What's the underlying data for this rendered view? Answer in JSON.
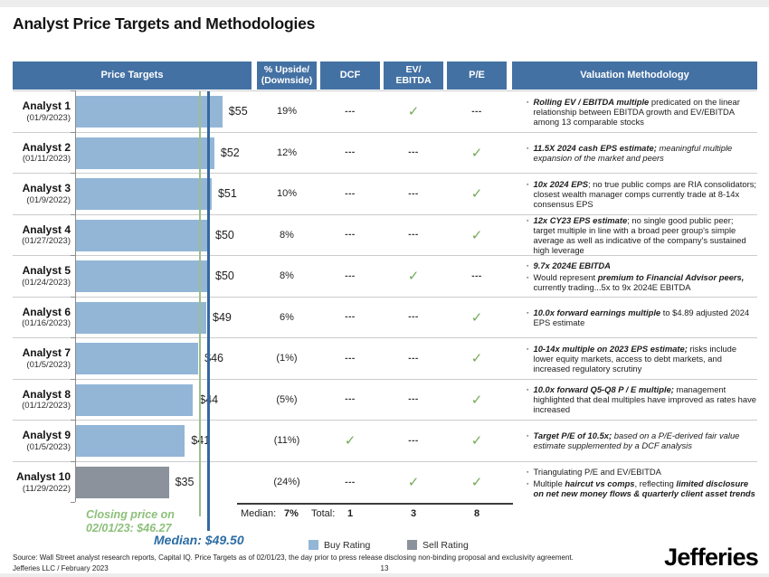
{
  "title": "Analyst Price Targets and Methodologies",
  "colors": {
    "header_bg": "#4471a3",
    "header_text": "#ffffff",
    "buy_bar": "#93b6d7",
    "sell_bar": "#8b929b",
    "check_green": "#74aa58",
    "closing_line": "#9cbf8b",
    "median_line": "#36689f",
    "closing_text": "#8cc07a",
    "median_text": "#2c6da4",
    "separator": "#cccccc",
    "axis": "#8c8c8c"
  },
  "header": {
    "price_targets": "Price Targets",
    "upside": "% Upside/\n(Downside)",
    "dcf": "DCF",
    "ev_ebitda": "EV/\nEBITDA",
    "pe": "P/E",
    "methodology": "Valuation Methodology"
  },
  "analysts": [
    {
      "name": "Analyst 1",
      "date": "(01/9/2023)",
      "target": 55,
      "price_label": "$55",
      "upside": "19%",
      "rating": "buy",
      "dcf": false,
      "ev": true,
      "pe": false,
      "bullets": [
        [
          {
            "t": "Rolling EV / EBITDA multiple",
            "s": "bi"
          },
          {
            "t": " predicated on the linear relationship between EBITDA growth and EV/EBITDA among 13 comparable stocks",
            "s": "n"
          }
        ]
      ]
    },
    {
      "name": "Analyst 2",
      "date": "(01/11/2023)",
      "target": 52,
      "price_label": "$52",
      "upside": "12%",
      "rating": "buy",
      "dcf": false,
      "ev": false,
      "pe": true,
      "bullets": [
        [
          {
            "t": "11.5X 2024 cash EPS estimate;",
            "s": "bi"
          },
          {
            "t": " meaningful multiple expansion of the market and peers",
            "s": "i"
          }
        ]
      ]
    },
    {
      "name": "Analyst 3",
      "date": "(01/9/2022)",
      "target": 51,
      "price_label": "$51",
      "upside": "10%",
      "rating": "buy",
      "dcf": false,
      "ev": false,
      "pe": true,
      "bullets": [
        [
          {
            "t": "10x 2024 EPS",
            "s": "bi"
          },
          {
            "t": "; no true public comps are RIA consolidators; closest wealth manager comps currently trade at 8-14x consensus EPS",
            "s": "n"
          }
        ]
      ]
    },
    {
      "name": "Analyst 4",
      "date": "(01/27/2023)",
      "target": 50,
      "price_label": "$50",
      "upside": "8%",
      "rating": "buy",
      "dcf": false,
      "ev": false,
      "pe": true,
      "bullets": [
        [
          {
            "t": "12x CY23 EPS estimate",
            "s": "bi"
          },
          {
            "t": "; no single good public peer; target multiple in line with a broad peer group's simple average as well as indicative of the company's sustained high leverage",
            "s": "n"
          }
        ]
      ]
    },
    {
      "name": "Analyst 5",
      "date": "(01/24/2023)",
      "target": 50,
      "price_label": "$50",
      "upside": "8%",
      "rating": "buy",
      "dcf": false,
      "ev": true,
      "pe": false,
      "bullets": [
        [
          {
            "t": "9.7x 2024E EBITDA",
            "s": "bi"
          }
        ],
        [
          {
            "t": "Would represent ",
            "s": "n"
          },
          {
            "t": "premium to Financial Advisor peers,",
            "s": "bi"
          },
          {
            "t": " currently trading...5x to 9x 2024E EBITDA",
            "s": "n"
          }
        ]
      ]
    },
    {
      "name": "Analyst 6",
      "date": "(01/16/2023)",
      "target": 49,
      "price_label": "$49",
      "upside": "6%",
      "rating": "buy",
      "dcf": false,
      "ev": false,
      "pe": true,
      "bullets": [
        [
          {
            "t": "10.0x forward earnings multiple",
            "s": "bi"
          },
          {
            "t": " to $4.89 adjusted 2024 EPS estimate",
            "s": "n"
          }
        ]
      ]
    },
    {
      "name": "Analyst 7",
      "date": "(01/5/2023)",
      "target": 46,
      "price_label": "$46",
      "upside": "(1%)",
      "rating": "buy",
      "dcf": false,
      "ev": false,
      "pe": true,
      "bullets": [
        [
          {
            "t": "10-14x multiple on 2023 EPS estimate;",
            "s": "bi"
          },
          {
            "t": " risks include lower equity markets, access to debt markets, and increased regulatory scrutiny",
            "s": "n"
          }
        ]
      ]
    },
    {
      "name": "Analyst 8",
      "date": "(01/12/2023)",
      "target": 44,
      "price_label": "$44",
      "upside": "(5%)",
      "rating": "buy",
      "dcf": false,
      "ev": false,
      "pe": true,
      "bullets": [
        [
          {
            "t": "10.0x forward Q5-Q8 P / E multiple;",
            "s": "bi"
          },
          {
            "t": " management highlighted that deal multiples have improved as rates have increased",
            "s": "n"
          }
        ]
      ]
    },
    {
      "name": "Analyst 9",
      "date": "(01/5/2023)",
      "target": 41,
      "price_label": "$41",
      "upside": "(11%)",
      "rating": "buy",
      "dcf": true,
      "ev": false,
      "pe": true,
      "bullets": [
        [
          {
            "t": "Target P/E of 10.5x;",
            "s": "bi"
          },
          {
            "t": " based on a P/E-derived fair value estimate supplemented by a DCF analysis",
            "s": "i"
          }
        ]
      ]
    },
    {
      "name": "Analyst 10",
      "date": "(11/29/2022)",
      "target": 35,
      "price_label": "$35",
      "upside": "(24%)",
      "rating": "sell",
      "dcf": false,
      "ev": true,
      "pe": true,
      "bullets": [
        [
          {
            "t": "Triangulating P/E and EV/EBITDA",
            "s": "n"
          }
        ],
        [
          {
            "t": "Multiple ",
            "s": "n"
          },
          {
            "t": "haircut vs comps",
            "s": "bi"
          },
          {
            "t": ", reflecting ",
            "s": "n"
          },
          {
            "t": "limited disclosure on net new money flows & quarterly client asset trends",
            "s": "bi"
          }
        ]
      ]
    }
  ],
  "summary": {
    "median_label": "Median:",
    "median_value": "7%",
    "total_label": "Total:",
    "dcf_total": "1",
    "ev_total": "3",
    "pe_total": "8"
  },
  "reference_lines": {
    "closing": {
      "value": 46.27,
      "label": "Closing price on\n02/01/23: $46.27"
    },
    "median": {
      "value": 49.5,
      "label": "Median: $49.50"
    }
  },
  "legend": {
    "buy_label": "Buy Rating",
    "sell_label": "Sell Rating"
  },
  "footer": {
    "source": "Source: Wall Street analyst research reports, Capital IQ. Price Targets as of 02/01/23, the day prior to press release disclosing non-binding proposal and exclusivity agreement.",
    "entity": "Jefferies LLC  /  February 2023",
    "page": "13",
    "logo": "Jefferies"
  },
  "chart_data": {
    "type": "bar",
    "orientation": "horizontal",
    "title": "Analyst Price Targets and Methodologies",
    "categories": [
      "Analyst 1 (01/9/2023)",
      "Analyst 2 (01/11/2023)",
      "Analyst 3 (01/9/2022)",
      "Analyst 4 (01/27/2023)",
      "Analyst 5 (01/24/2023)",
      "Analyst 6 (01/16/2023)",
      "Analyst 7 (01/5/2023)",
      "Analyst 8 (01/12/2023)",
      "Analyst 9 (01/5/2023)",
      "Analyst 10 (11/29/2022)"
    ],
    "values": [
      55,
      52,
      51,
      50,
      50,
      49,
      46,
      44,
      41,
      35
    ],
    "value_labels": [
      "$55",
      "$52",
      "$51",
      "$50",
      "$50",
      "$49",
      "$46",
      "$44",
      "$41",
      "$35"
    ],
    "ratings": [
      "buy",
      "buy",
      "buy",
      "buy",
      "buy",
      "buy",
      "buy",
      "buy",
      "buy",
      "sell"
    ],
    "upside_downside_pct": [
      19,
      12,
      10,
      8,
      8,
      6,
      -1,
      -5,
      -11,
      -24
    ],
    "median_upside_pct": 7,
    "methodology_flags": {
      "DCF": [
        false,
        false,
        false,
        false,
        false,
        false,
        false,
        false,
        true,
        false
      ],
      "EV/EBITDA": [
        true,
        false,
        false,
        false,
        true,
        false,
        false,
        false,
        false,
        true
      ],
      "P/E": [
        false,
        true,
        true,
        true,
        false,
        true,
        true,
        true,
        true,
        true
      ]
    },
    "methodology_totals": {
      "DCF": 1,
      "EV/EBITDA": 3,
      "P/E": 8
    },
    "reference_lines": [
      {
        "label": "Closing price on 02/01/23",
        "value": 46.27
      },
      {
        "label": "Median",
        "value": 49.5
      }
    ],
    "xlim": [
      0,
      60
    ],
    "legend_entries": [
      "Buy Rating",
      "Sell Rating"
    ],
    "legend_position": "bottom"
  }
}
